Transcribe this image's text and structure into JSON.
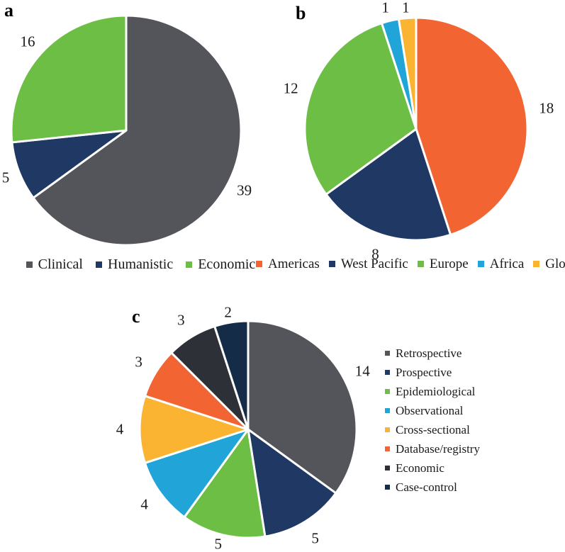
{
  "figure": {
    "background": "#ffffff",
    "text_color": "#1a1a1a"
  },
  "chart_data": [
    {
      "id": "a",
      "type": "pie",
      "panel_label": "a",
      "title": "",
      "categories": [
        "Clinical",
        "Humanistic",
        "Economic"
      ],
      "values": [
        39,
        5,
        16
      ],
      "colors": [
        "#53555A",
        "#1F3864",
        "#6CBE45"
      ],
      "total": 60,
      "start_angle_deg": 0,
      "direction": "clockwise",
      "data_labels": "outside",
      "legend_position": "bottom"
    },
    {
      "id": "b",
      "type": "pie",
      "panel_label": "b",
      "title": "",
      "categories": [
        "Americas",
        "West Pacific",
        "Europe",
        "Africa",
        "Global"
      ],
      "values": [
        18,
        8,
        12,
        1,
        1
      ],
      "colors": [
        "#F26532",
        "#1F3864",
        "#6CBE45",
        "#21A5D8",
        "#FBB431"
      ],
      "total": 40,
      "start_angle_deg": 0,
      "direction": "clockwise",
      "data_labels": "outside",
      "legend_position": "bottom"
    },
    {
      "id": "c",
      "type": "pie",
      "panel_label": "c",
      "title": "",
      "categories": [
        "Retrospective",
        "Prospective",
        "Epidemiological",
        "Observational",
        "Cross-sectional",
        "Database/registry",
        "Economic",
        "Case-control"
      ],
      "values": [
        14,
        5,
        5,
        4,
        4,
        3,
        3,
        2
      ],
      "colors": [
        "#53555A",
        "#1F3864",
        "#6CBE45",
        "#21A5D8",
        "#FBB431",
        "#F26532",
        "#2D3137",
        "#152C49"
      ],
      "total": 40,
      "start_angle_deg": 0,
      "direction": "clockwise",
      "data_labels": "outside",
      "legend_position": "right"
    }
  ]
}
